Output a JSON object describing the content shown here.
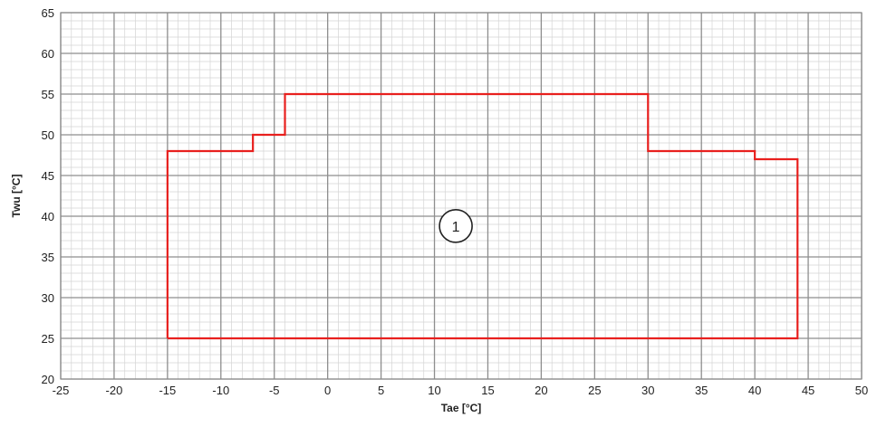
{
  "chart_data": {
    "type": "line",
    "title": "",
    "xlabel": "Tae [°C]",
    "ylabel": "Twu [°C]",
    "xlim": [
      -25,
      50
    ],
    "ylim": [
      20,
      65
    ],
    "x_major_step": 5,
    "y_major_step": 5,
    "x_minor_step": 1,
    "y_minor_step": 1,
    "grid": true,
    "legend": "none",
    "x_ticks": [
      "-25",
      "-20",
      "-15",
      "-10",
      "-5",
      "0",
      "5",
      "10",
      "15",
      "20",
      "25",
      "30",
      "35",
      "40",
      "45",
      "50"
    ],
    "y_ticks": [
      "20",
      "25",
      "30",
      "35",
      "40",
      "45",
      "50",
      "55",
      "60",
      "65"
    ],
    "series": [
      {
        "color": "#e8201e",
        "points": [
          [
            -15,
            25
          ],
          [
            -15,
            48
          ],
          [
            -7,
            48
          ],
          [
            -7,
            50
          ],
          [
            -4,
            50
          ],
          [
            -4,
            55
          ],
          [
            30,
            55
          ],
          [
            30,
            48
          ],
          [
            40,
            48
          ],
          [
            40,
            47
          ],
          [
            44,
            47
          ],
          [
            44,
            25
          ],
          [
            -15,
            25
          ]
        ]
      }
    ],
    "annotations": [
      {
        "text": "1",
        "x": 12,
        "y": 38.8,
        "shape": "circle"
      }
    ]
  }
}
